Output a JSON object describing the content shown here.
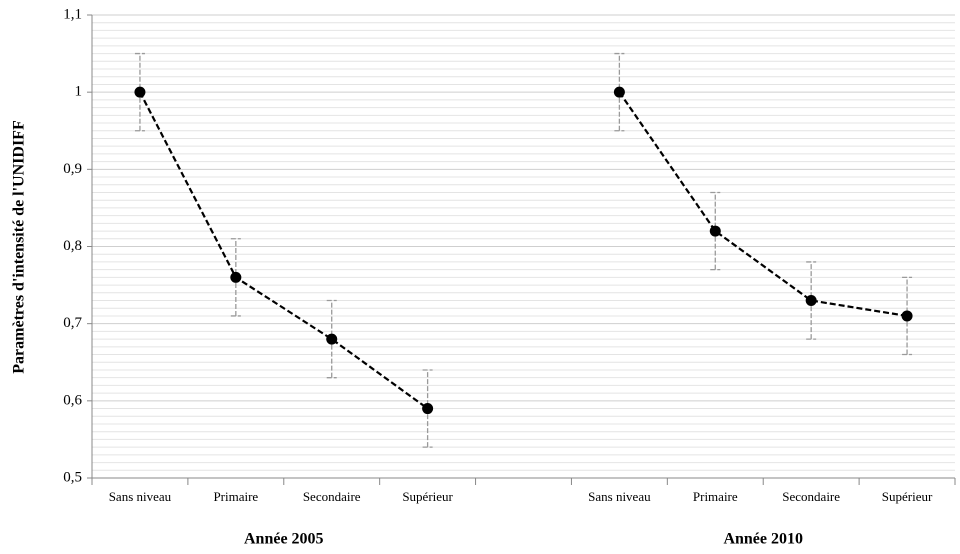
{
  "chart_data": {
    "type": "line",
    "y_label": "Paramètres d'intensité de l'UNIDIFF",
    "categories": [
      "Sans niveau",
      "Primaire",
      "Secondaire",
      "Supérieur",
      null,
      "Sans niveau",
      "Primaire",
      "Secondaire",
      "Supérieur"
    ],
    "values": [
      1,
      0.76,
      0.68,
      0.59,
      null,
      1,
      0.82,
      0.73,
      0.71
    ],
    "errors": [
      0.05,
      0.05,
      0.05,
      0.05,
      null,
      0.05,
      0.05,
      0.05,
      0.05
    ],
    "group_labels": [
      "Année 2005",
      "Année 2010"
    ],
    "color": "#000000",
    "error_color": "#9a9a9a",
    "ylim": [
      0.5,
      1.1
    ],
    "yticks": [
      {
        "value": 0.5,
        "label": "0,5"
      },
      {
        "value": 0.6,
        "label": "0,6"
      },
      {
        "value": 0.7,
        "label": "0,7"
      },
      {
        "value": 0.8,
        "label": "0,8"
      },
      {
        "value": 0.9,
        "label": "0,9"
      },
      1,
      {
        "value": 1.1,
        "label": "1,1"
      }
    ],
    "grid": true
  }
}
